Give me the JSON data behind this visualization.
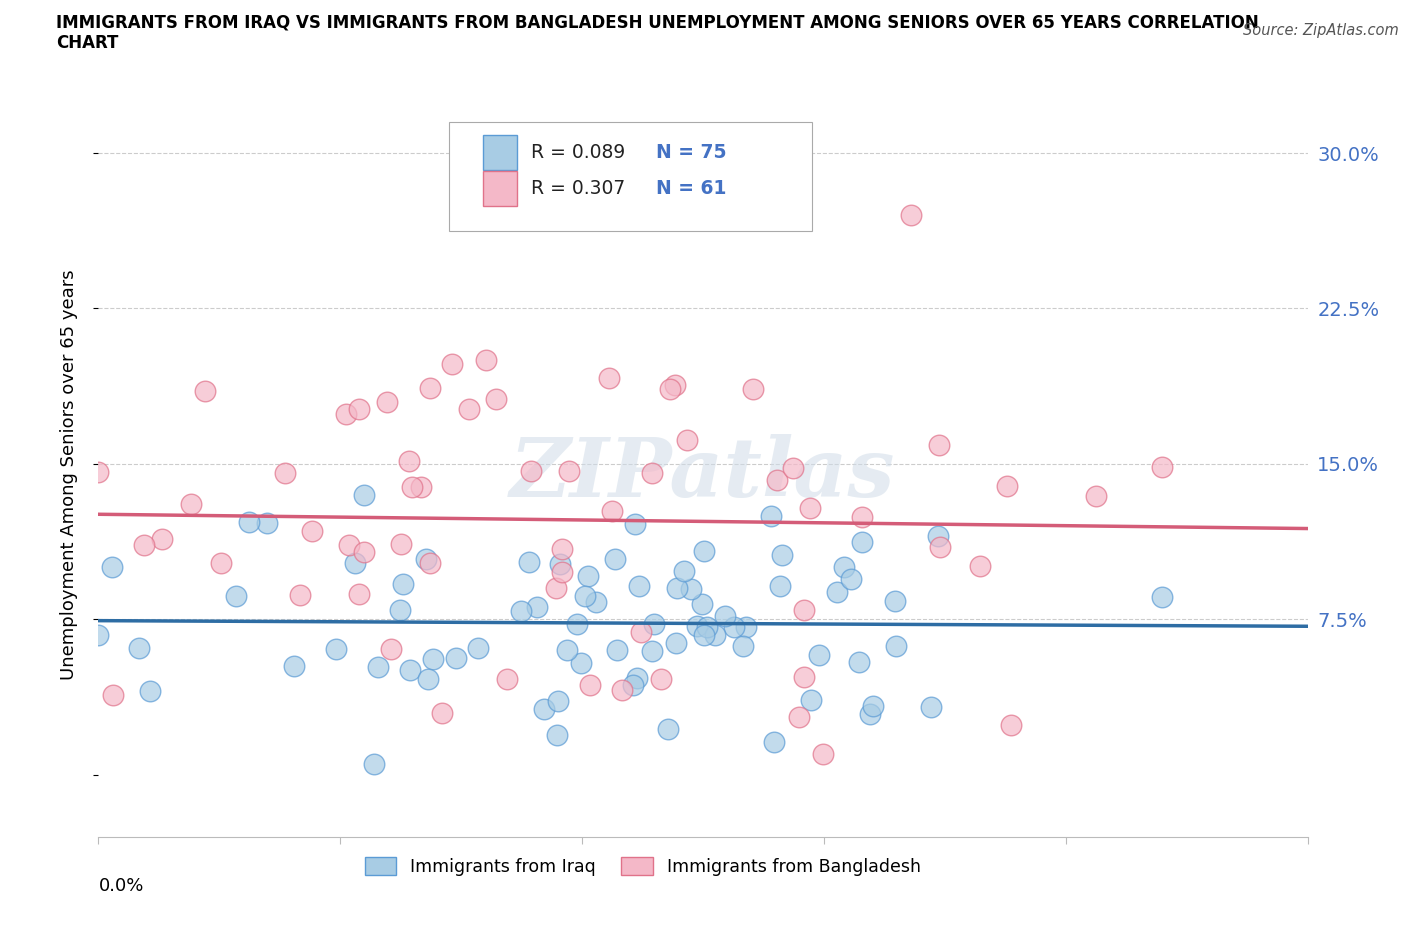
{
  "title_line1": "IMMIGRANTS FROM IRAQ VS IMMIGRANTS FROM BANGLADESH UNEMPLOYMENT AMONG SENIORS OVER 65 YEARS CORRELATION",
  "title_line2": "CHART",
  "source_text": "Source: ZipAtlas.com",
  "ylabel": "Unemployment Among Seniors over 65 years",
  "xlim": [
    0.0,
    0.25
  ],
  "ylim": [
    -0.03,
    0.32
  ],
  "yticks": [
    0.0,
    0.075,
    0.15,
    0.225,
    0.3
  ],
  "ytick_labels": [
    "",
    "7.5%",
    "15.0%",
    "22.5%",
    "30.0%"
  ],
  "xticks": [
    0.0,
    0.05,
    0.1,
    0.15,
    0.2,
    0.25
  ],
  "iraq_color": "#a8cce4",
  "iraq_color_edge": "#5b9bd5",
  "bangladesh_color": "#f4b8c8",
  "bangladesh_color_edge": "#e0728a",
  "iraq_line_color": "#2e6da4",
  "bangladesh_line_color": "#d45c78",
  "ytick_color": "#4472c4",
  "R_iraq": 0.089,
  "N_iraq": 75,
  "R_bangladesh": 0.307,
  "N_bangladesh": 61,
  "background_color": "#ffffff",
  "grid_color": "#cccccc"
}
